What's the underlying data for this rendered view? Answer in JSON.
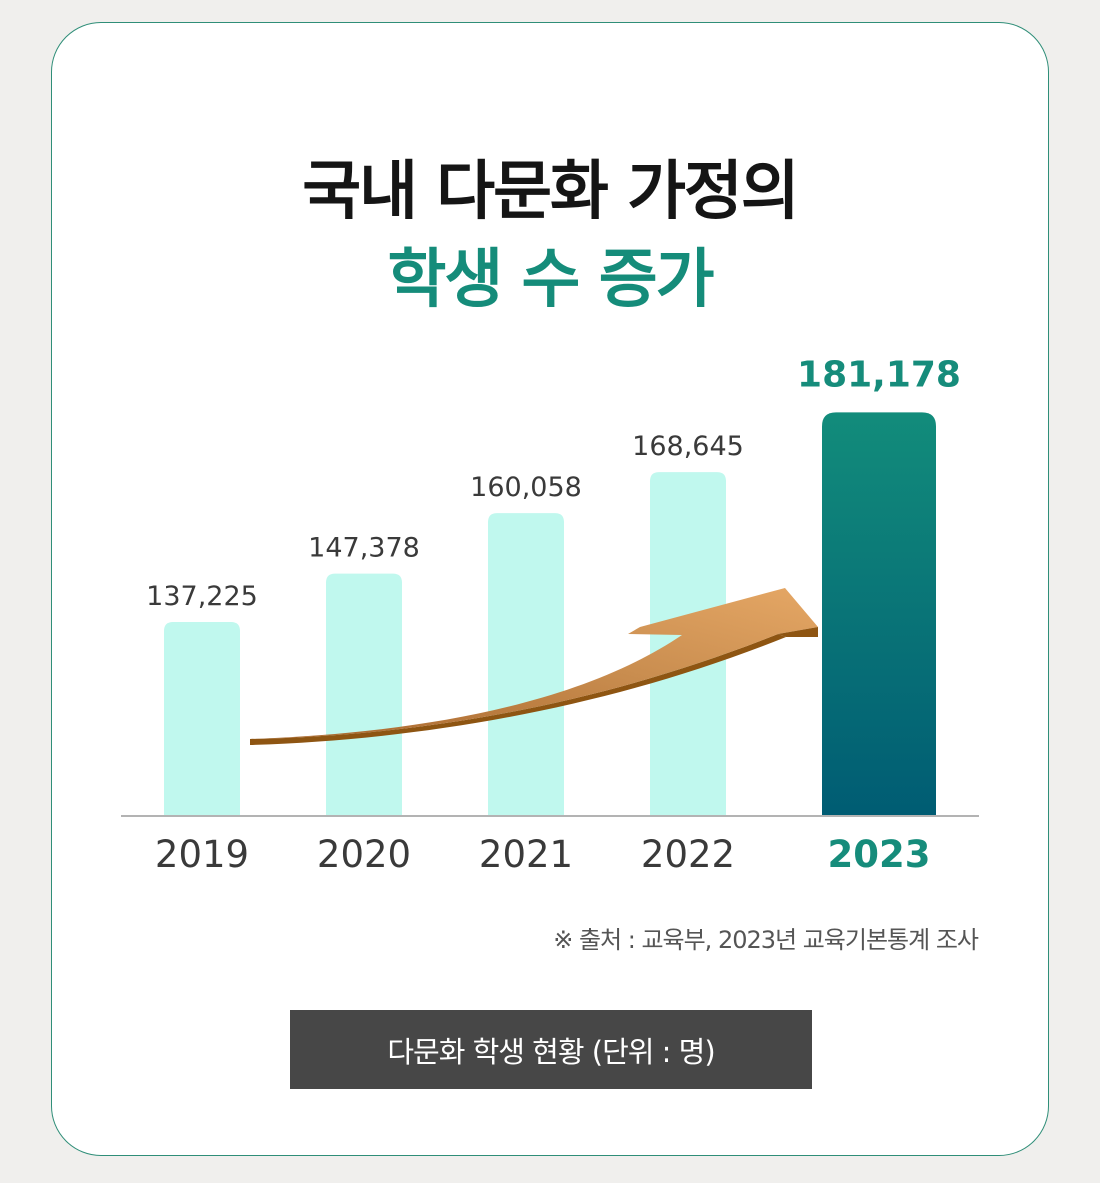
{
  "title": {
    "line1": "국내 다문화 가정의",
    "line2": "학생 수 증가"
  },
  "source_note": "※ 출처 : 교육부, 2023년 교육기본통계 조사",
  "caption": "다문화 학생 현황 (단위 : 명)",
  "colors": {
    "bar": "#c0f8ee",
    "highlight_bar_top": "#128c7b",
    "highlight_bar_bottom": "#005c73",
    "highlight_text": "#168c7b",
    "label_text": "#3a3a3a",
    "arrow": "#c68a4e",
    "axis": "#b3b3b3",
    "title_dark": "#151515",
    "title_accent": "#158c7a",
    "caption_bg": "#474747"
  },
  "chart_data": {
    "type": "bar",
    "categories": [
      "2019",
      "2020",
      "2021",
      "2022",
      "2023"
    ],
    "values": [
      137225,
      147378,
      160058,
      168645,
      181178
    ],
    "value_labels": [
      "137,225",
      "147,378",
      "160,058",
      "168,645",
      "181,178"
    ],
    "highlight_index": 4,
    "ylim": [
      100000,
      190000
    ],
    "grid": false,
    "legend": "none",
    "annotation": "upward trend arrow"
  }
}
